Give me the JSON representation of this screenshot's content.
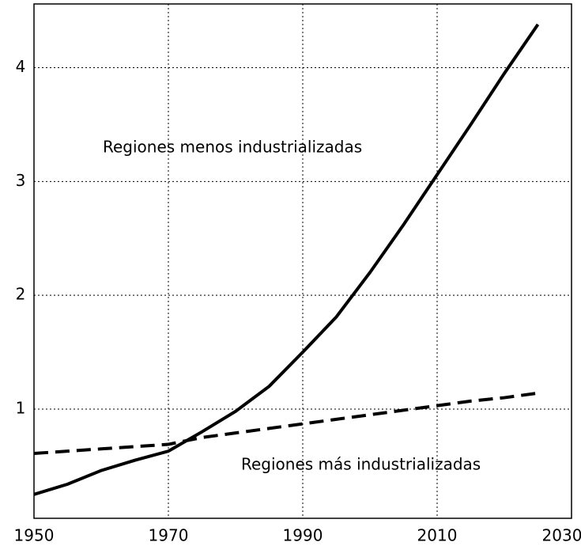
{
  "chart_data": {
    "type": "line",
    "x": [
      1950,
      1955,
      1960,
      1965,
      1970,
      1975,
      1980,
      1985,
      1990,
      1995,
      2000,
      2005,
      2010,
      2015,
      2020,
      2025
    ],
    "series": [
      {
        "name": "Regiones menos industrializadas",
        "color": "#000000",
        "line_style": "solid",
        "values": [
          0.25,
          0.34,
          0.46,
          0.55,
          0.63,
          0.8,
          0.98,
          1.2,
          1.5,
          1.81,
          2.2,
          2.62,
          3.06,
          3.5,
          3.95,
          4.38
        ]
      },
      {
        "name": "Regiones más industrializadas",
        "color": "#000000",
        "line_style": "dashed",
        "values": [
          0.61,
          0.63,
          0.65,
          0.67,
          0.69,
          0.75,
          0.79,
          0.83,
          0.87,
          0.91,
          0.95,
          0.99,
          1.03,
          1.07,
          1.1,
          1.14
        ]
      }
    ],
    "xlim": [
      1950,
      2030
    ],
    "xticks": [
      1950,
      1970,
      1990,
      2010,
      2030
    ],
    "ylim": [
      0.04,
      4.56
    ],
    "yticks": [
      1,
      2,
      3,
      4
    ],
    "grid": true,
    "grid_style": "dotted"
  }
}
